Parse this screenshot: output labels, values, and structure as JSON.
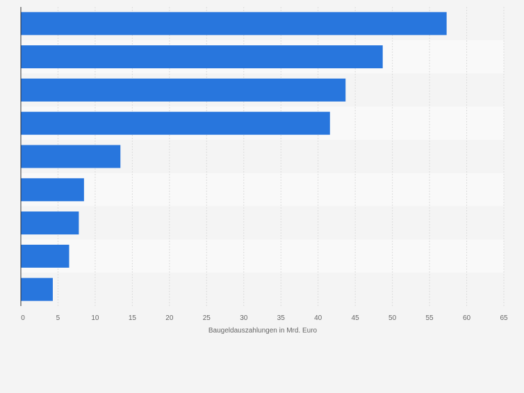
{
  "chart_data": {
    "type": "bar",
    "orientation": "horizontal",
    "categories": [
      "",
      "",
      "",
      "",
      "",
      "",
      "",
      "",
      ""
    ],
    "values": [
      57.3,
      48.7,
      43.7,
      41.6,
      13.4,
      8.5,
      7.8,
      6.5,
      4.3
    ],
    "xlabel": "Baugeldauszahlungen in Mrd. Euro",
    "xlim": [
      0,
      65
    ],
    "xticks": [
      0,
      5,
      10,
      15,
      20,
      25,
      30,
      35,
      40,
      45,
      50,
      55,
      60,
      65
    ],
    "grid": true,
    "legend": "none"
  },
  "colors": {
    "bar": "#2876dd",
    "background": "#f4f4f4",
    "band_light": "#f9f9f9",
    "band_dark": "#f4f4f4",
    "gridline": "#dcdcdc",
    "axis": "#333333",
    "tick_text": "#666666"
  }
}
